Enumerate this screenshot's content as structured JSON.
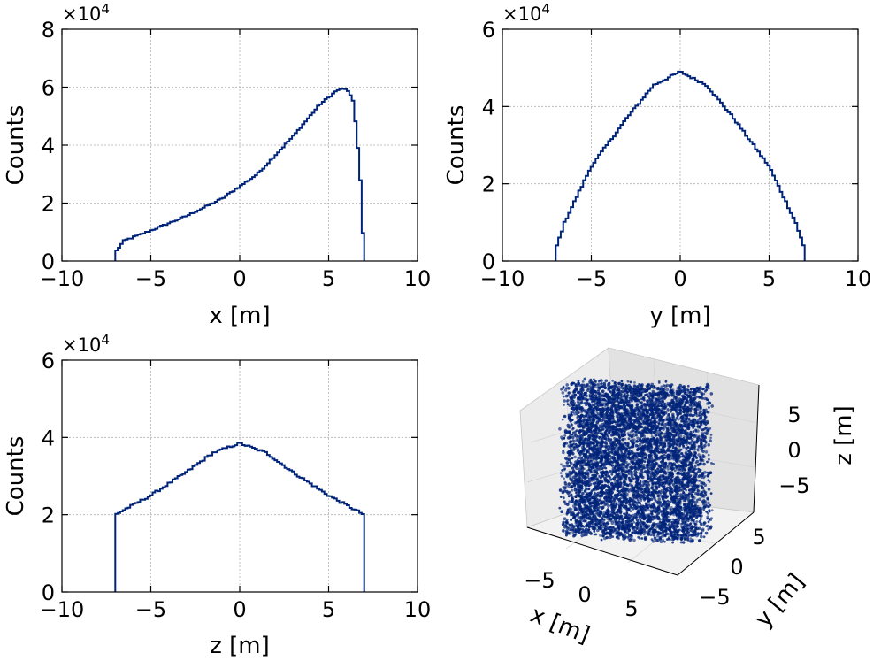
{
  "colors": {
    "series": "#00237a",
    "pane_left": "#ececec",
    "pane_right": "#e2e2e2",
    "pane_floor": "#f2f2f2"
  },
  "chart_data": [
    {
      "type": "histogram",
      "xlabel": "x [m]",
      "ylabel": "Counts",
      "multiplier": {
        "base": "×10",
        "exp": "4"
      },
      "xlim": [
        -10,
        10
      ],
      "ylim": [
        0,
        8
      ],
      "xticks": [
        "−10",
        "−5",
        "0",
        "5",
        "10"
      ],
      "yticks": [
        "0",
        "2",
        "4",
        "6",
        "8"
      ],
      "grid": true,
      "profile": [
        [
          -7.0,
          0.0
        ],
        [
          -7.0,
          0.3
        ],
        [
          -6.5,
          0.7
        ],
        [
          -5.0,
          1.05
        ],
        [
          -3.0,
          1.55
        ],
        [
          -1.0,
          2.15
        ],
        [
          1.0,
          3.0
        ],
        [
          3.0,
          4.3
        ],
        [
          4.5,
          5.4
        ],
        [
          5.5,
          5.9
        ],
        [
          6.0,
          5.95
        ],
        [
          6.4,
          5.5
        ],
        [
          6.6,
          4.3
        ],
        [
          6.8,
          2.7
        ],
        [
          7.0,
          0.0
        ]
      ],
      "bin_width": 0.14
    },
    {
      "type": "histogram",
      "xlabel": "y [m]",
      "ylabel": "Counts",
      "multiplier": {
        "base": "×10",
        "exp": "4"
      },
      "xlim": [
        -10,
        10
      ],
      "ylim": [
        0,
        6
      ],
      "xticks": [
        "−10",
        "−5",
        "0",
        "5",
        "10"
      ],
      "yticks": [
        "0",
        "2",
        "4",
        "6"
      ],
      "grid": true,
      "profile": [
        [
          -7.0,
          0.0
        ],
        [
          -7.0,
          0.3
        ],
        [
          -6.5,
          1.0
        ],
        [
          -5.0,
          2.45
        ],
        [
          -3.0,
          3.7
        ],
        [
          -1.5,
          4.55
        ],
        [
          0.0,
          4.9
        ],
        [
          1.5,
          4.55
        ],
        [
          3.0,
          3.7
        ],
        [
          5.0,
          2.45
        ],
        [
          6.5,
          1.0
        ],
        [
          7.0,
          0.3
        ],
        [
          7.0,
          0.0
        ]
      ],
      "bin_width": 0.14
    },
    {
      "type": "histogram",
      "xlabel": "z [m]",
      "ylabel": "Counts",
      "multiplier": {
        "base": "×10",
        "exp": "4"
      },
      "xlim": [
        -10,
        10
      ],
      "ylim": [
        0,
        6
      ],
      "xticks": [
        "−10",
        "−5",
        "0",
        "5",
        "10"
      ],
      "yticks": [
        "0",
        "2",
        "4",
        "6"
      ],
      "grid": true,
      "profile": [
        [
          -7.0,
          0.0
        ],
        [
          -7.0,
          2.0
        ],
        [
          -5.0,
          2.5
        ],
        [
          -3.0,
          3.1
        ],
        [
          -1.5,
          3.6
        ],
        [
          0.0,
          3.85
        ],
        [
          1.5,
          3.6
        ],
        [
          3.0,
          3.1
        ],
        [
          5.0,
          2.5
        ],
        [
          7.0,
          2.0
        ],
        [
          7.0,
          0.0
        ]
      ],
      "bin_width": 0.14
    },
    {
      "type": "scatter3d",
      "xlabel": "x [m]",
      "ylabel": "y [m]",
      "zlabel": "z [m]",
      "xlim": [
        -7,
        7
      ],
      "ylim": [
        -7,
        7
      ],
      "zlim": [
        -7,
        7
      ],
      "xticks": [
        "−5",
        "0",
        "5"
      ],
      "yticks": [
        "−5",
        "0",
        "5"
      ],
      "zticks": [
        "5",
        "0",
        "−5"
      ],
      "grid": true,
      "point_count": 6000
    }
  ]
}
